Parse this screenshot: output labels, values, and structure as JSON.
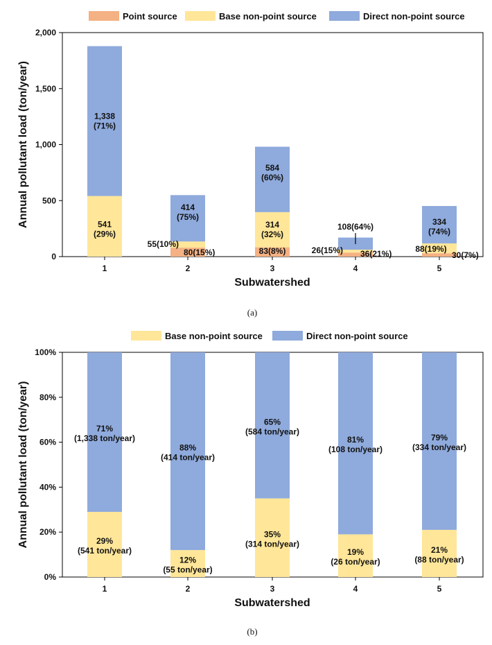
{
  "colors": {
    "point_source": "#F4B183",
    "base_nps": "#FFE699",
    "direct_nps": "#8FAADC",
    "axis": "#000000"
  },
  "chart_data": [
    {
      "type": "bar",
      "stacked": true,
      "caption": "(a)",
      "xlabel": "Subwatershed",
      "ylabel": "Annual pollutant  load (ton/year)",
      "categories": [
        "1",
        "2",
        "3",
        "4",
        "5"
      ],
      "ylim": [
        0,
        2000
      ],
      "yticks": [
        "0",
        "500",
        "1,000",
        "1,500",
        "2,000"
      ],
      "legend_position": "top",
      "series": [
        {
          "name": "Point source",
          "values": [
            0,
            80,
            83,
            36,
            30
          ]
        },
        {
          "name": "Base non-point source",
          "values": [
            541,
            55,
            314,
            26,
            88
          ]
        },
        {
          "name": "Direct non-point source",
          "values": [
            1338,
            414,
            584,
            108,
            334
          ]
        }
      ],
      "data_labels": {
        "point": [
          "",
          "80(15%)",
          "83(8%)",
          "36(21%)",
          "30(7%)"
        ],
        "base": [
          [
            "541",
            "(29%)"
          ],
          [
            "55(10%)"
          ],
          [
            "314",
            "(32%)"
          ],
          [
            "26(15%)"
          ],
          [
            "88(19%)"
          ]
        ],
        "direct": [
          [
            "1,338",
            "(71%)"
          ],
          [
            "414",
            "(75%)"
          ],
          [
            "584",
            "(60%)"
          ],
          [
            "108(64%)"
          ],
          [
            "334",
            "(74%)"
          ]
        ]
      }
    },
    {
      "type": "bar",
      "stacked": true,
      "percent": true,
      "caption": "(b)",
      "xlabel": "Subwatershed",
      "ylabel": "Annual pollutant  load (ton/year)",
      "categories": [
        "1",
        "2",
        "3",
        "4",
        "5"
      ],
      "ylim": [
        0,
        100
      ],
      "yticks": [
        "0%",
        "20%",
        "40%",
        "60%",
        "80%",
        "100%"
      ],
      "legend_position": "top",
      "series": [
        {
          "name": "Base non-point source",
          "values": [
            29,
            12,
            35,
            19,
            21
          ]
        },
        {
          "name": "Direct non-point source",
          "values": [
            71,
            88,
            65,
            81,
            79
          ]
        }
      ],
      "data_labels": {
        "base": [
          [
            "29%",
            "(541 ton/year)"
          ],
          [
            "12%",
            "(55 ton/year)"
          ],
          [
            "35%",
            "(314 ton/year)"
          ],
          [
            "19%",
            "(26 ton/year)"
          ],
          [
            "21%",
            "(88 ton/year)"
          ]
        ],
        "direct": [
          [
            "71%",
            "(1,338 ton/year)"
          ],
          [
            "88%",
            "(414 ton/year)"
          ],
          [
            "65%",
            "(584 ton/year)"
          ],
          [
            "81%",
            "(108 ton/year)"
          ],
          [
            "79%",
            "(334 ton/year)"
          ]
        ]
      }
    }
  ]
}
